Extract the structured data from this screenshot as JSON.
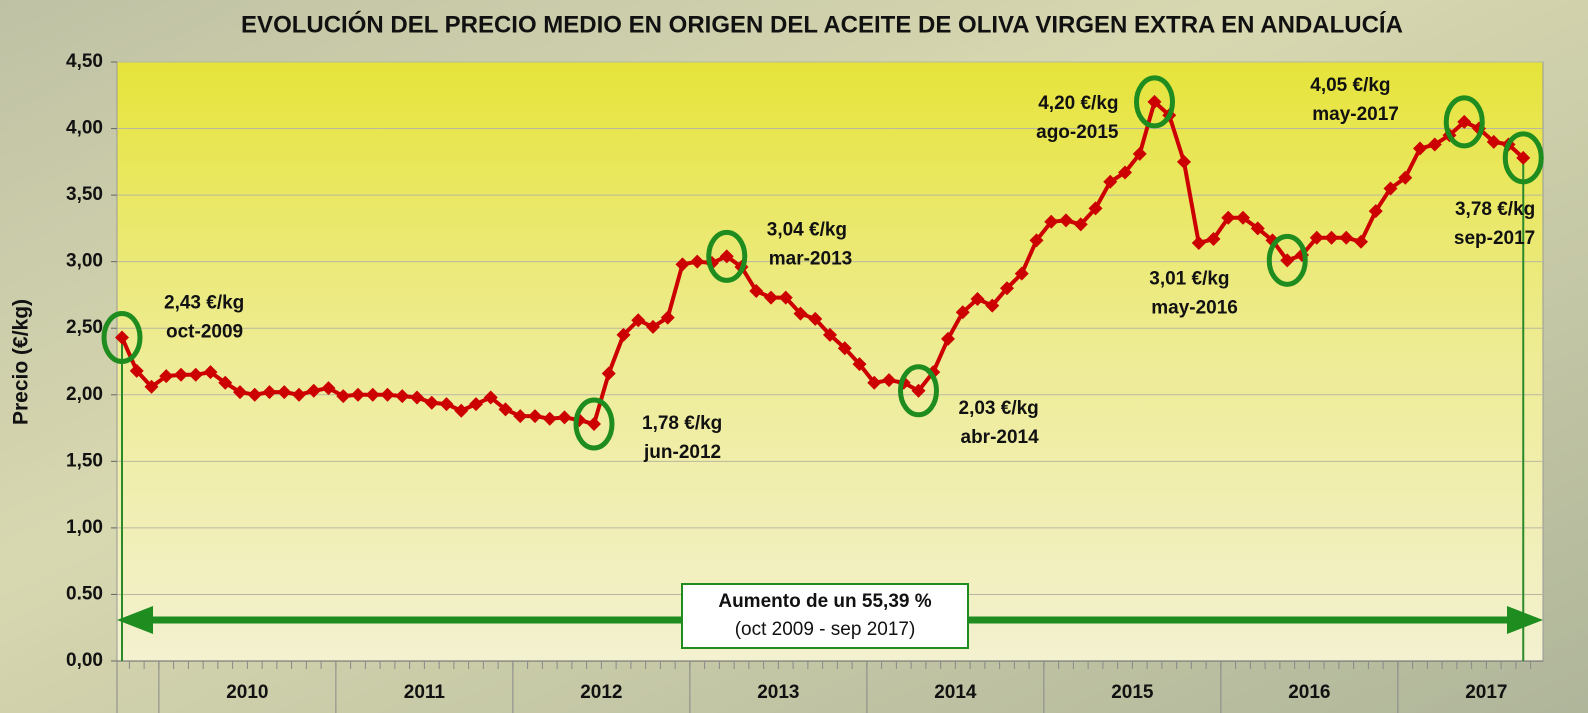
{
  "chart_data": {
    "type": "line",
    "title": "EVOLUCIÓN DEL PRECIO MEDIO EN ORIGEN DEL ACEITE DE OLIVA VIRGEN EXTRA EN ANDALUCÍA",
    "y_label": "Precio (€/kg)",
    "categories": [
      null,
      null,
      null,
      null,
      null,
      null,
      null,
      null,
      "2010",
      null,
      null,
      null,
      null,
      null,
      null,
      null,
      null,
      null,
      null,
      null,
      "2011",
      null,
      null,
      null,
      null,
      null,
      null,
      null,
      null,
      null,
      null,
      null,
      "2012",
      null,
      null,
      null,
      null,
      null,
      null,
      null,
      null,
      null,
      null,
      null,
      "2013",
      null,
      null,
      null,
      null,
      null,
      null,
      null,
      null,
      null,
      null,
      null,
      "2014",
      null,
      null,
      null,
      null,
      null,
      null,
      null,
      null,
      null,
      null,
      null,
      "2015",
      null,
      null,
      null,
      null,
      null,
      null,
      null,
      null,
      null,
      null,
      null,
      "2016",
      null,
      null,
      null,
      null,
      null,
      null,
      null,
      null,
      null,
      null,
      null,
      "2017",
      null,
      null,
      null
    ],
    "series": [
      {
        "name": "Precio",
        "color": "#cc0000",
        "values": [
          2.43,
          2.18,
          2.06,
          2.14,
          2.15,
          2.15,
          2.17,
          2.09,
          2.02,
          2.0,
          2.02,
          2.02,
          2.0,
          2.03,
          2.05,
          1.99,
          2.0,
          2.0,
          2.0,
          1.99,
          1.98,
          1.94,
          1.93,
          1.88,
          1.93,
          1.98,
          1.89,
          1.84,
          1.84,
          1.82,
          1.83,
          1.81,
          1.78,
          2.16,
          2.45,
          2.56,
          2.51,
          2.58,
          2.98,
          3.0,
          2.99,
          3.04,
          2.96,
          2.78,
          2.73,
          2.73,
          2.61,
          2.57,
          2.45,
          2.35,
          2.23,
          2.09,
          2.11,
          2.09,
          2.03,
          2.17,
          2.42,
          2.62,
          2.72,
          2.67,
          2.8,
          2.91,
          3.16,
          3.3,
          3.31,
          3.28,
          3.4,
          3.6,
          3.67,
          3.81,
          4.2,
          4.1,
          3.75,
          3.14,
          3.17,
          3.33,
          3.33,
          3.25,
          3.16,
          3.01,
          3.05,
          3.18,
          3.18,
          3.18,
          3.15,
          3.38,
          3.55,
          3.63,
          3.85,
          3.88,
          3.95,
          4.05,
          4.0,
          3.9,
          3.88,
          3.78
        ],
        "value_labels": [
          "2,43 €/kg",
          null,
          null,
          null,
          null,
          null,
          null,
          null,
          null,
          null,
          null,
          null,
          null,
          null,
          null,
          null,
          null,
          null,
          null,
          null,
          null,
          null,
          null,
          null,
          null,
          null,
          null,
          null,
          null,
          null,
          null,
          null,
          "1,78 €/kg",
          null,
          null,
          null,
          null,
          null,
          null,
          null,
          null,
          "3,04 €/kg",
          null,
          null,
          null,
          null,
          null,
          null,
          null,
          null,
          null,
          null,
          null,
          null,
          "2,03 €/kg",
          null,
          null,
          null,
          null,
          null,
          null,
          null,
          null,
          null,
          null,
          null,
          null,
          null,
          null,
          null,
          "4,20 €/kg",
          null,
          null,
          null,
          null,
          null,
          null,
          null,
          null,
          "3,01 €/kg",
          null,
          null,
          null,
          null,
          null,
          null,
          null,
          null,
          null,
          null,
          null,
          "4,05 €/kg",
          null,
          null,
          null,
          "3,78 €/kg"
        ],
        "date_labels": [
          "oct-2009",
          null,
          null,
          null,
          null,
          null,
          null,
          null,
          null,
          null,
          null,
          null,
          null,
          null,
          null,
          null,
          null,
          null,
          null,
          null,
          null,
          null,
          null,
          null,
          null,
          null,
          null,
          null,
          null,
          null,
          null,
          null,
          "jun-2012",
          null,
          null,
          null,
          null,
          null,
          null,
          null,
          null,
          "mar-2013",
          null,
          null,
          null,
          null,
          null,
          null,
          null,
          null,
          null,
          null,
          null,
          null,
          "abr-2014",
          null,
          null,
          null,
          null,
          null,
          null,
          null,
          null,
          null,
          null,
          null,
          null,
          null,
          null,
          null,
          "ago-2015",
          null,
          null,
          null,
          null,
          null,
          null,
          null,
          null,
          "may-2016",
          null,
          null,
          null,
          null,
          null,
          null,
          null,
          null,
          null,
          null,
          null,
          "may-2017",
          null,
          null,
          null,
          "sep-2017"
        ]
      }
    ],
    "ylim": [
      0,
      4.5
    ],
    "yticks": [
      {
        "value": 0,
        "label": "0,00"
      },
      {
        "value": 0.5,
        "label": "0.50"
      },
      {
        "value": 1,
        "label": "1,00"
      },
      {
        "value": 1.5,
        "label": "1,50"
      },
      {
        "value": 2,
        "label": "2,00"
      },
      {
        "value": 2.5,
        "label": "2,50"
      },
      {
        "value": 3,
        "label": "3,00"
      },
      {
        "value": 3.5,
        "label": "3,50"
      },
      {
        "value": 4,
        "label": "4,00"
      },
      {
        "value": 4.5,
        "label": "4,50"
      }
    ],
    "grid": true,
    "annotation": {
      "title": "Aumento de un 55,39 %",
      "subtitle": "(oct 2009 - sep 2017)"
    }
  }
}
